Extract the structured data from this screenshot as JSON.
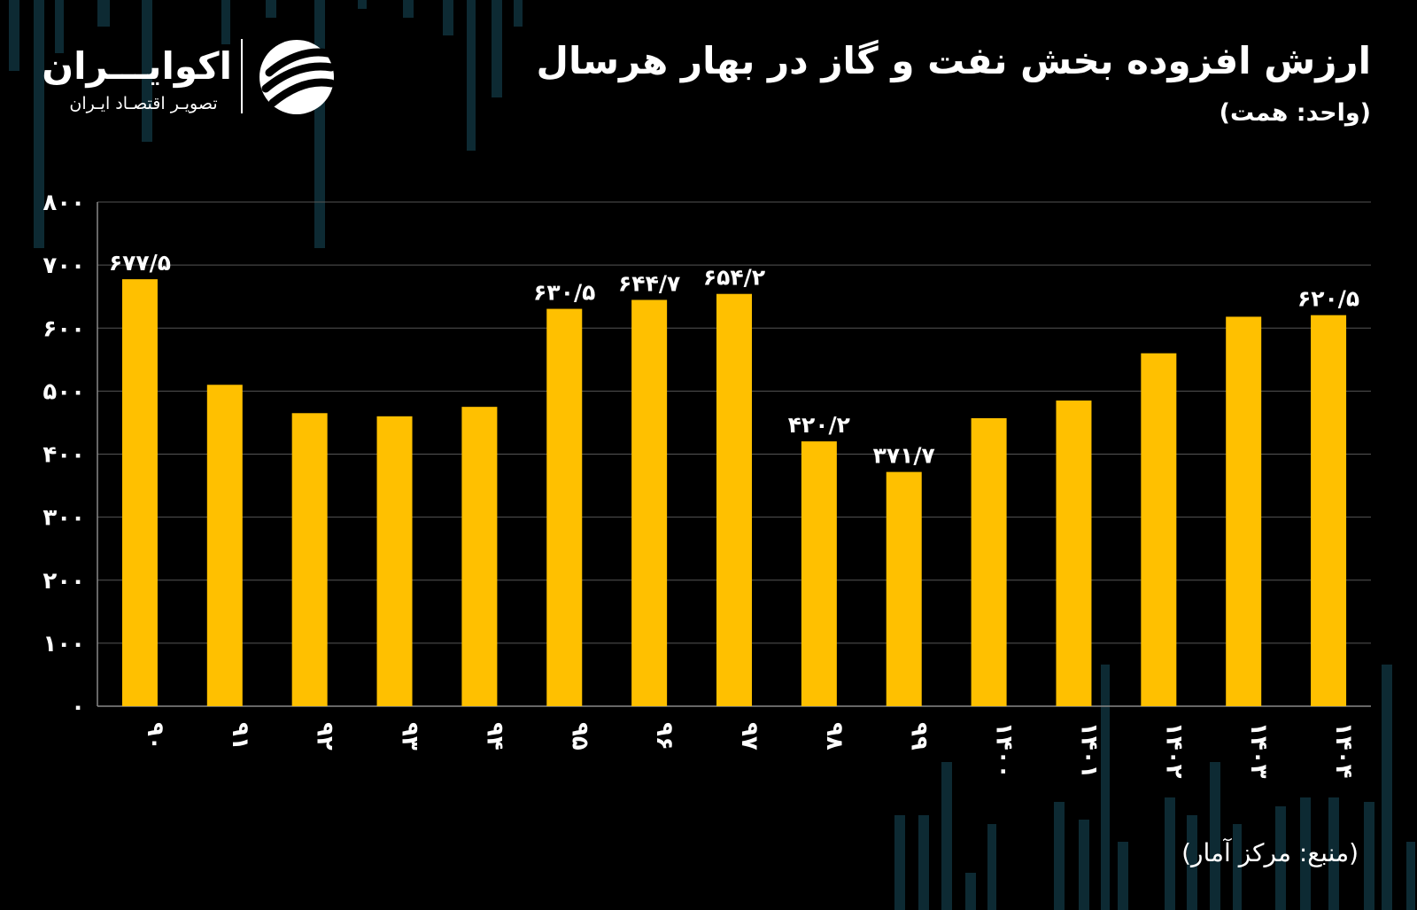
{
  "header": {
    "title": "ارزش افزوده بخش نفت و گاز در بهار هرسال",
    "unit": "(واحد: همت)"
  },
  "logo": {
    "name": "اکوایـــران",
    "tagline": "تصویـر اقتصـاد ایـران",
    "icon": "ecoiran-logo-icon"
  },
  "footer": {
    "source": "(منبع: مرکز آمار)"
  },
  "colors": {
    "background": "#000000",
    "bar": "#FFC000",
    "grid": "#555555",
    "text": "#FFFFFF",
    "deco": "#0d2a33"
  },
  "chart_data": {
    "type": "bar",
    "title": "ارزش افزوده بخش نفت و گاز در بهار هرسال",
    "categories": [
      "۹۰",
      "۹۱",
      "۹۲",
      "۹۳",
      "۹۴",
      "۹۵",
      "۹۶",
      "۹۷",
      "۹۸",
      "۹۹",
      "۱۴۰۰",
      "۱۴۰۱",
      "۱۴۰۲",
      "۱۴۰۳",
      "۱۴۰۴"
    ],
    "values": [
      677.5,
      510,
      465,
      460,
      475,
      630.5,
      644.7,
      654.2,
      420.2,
      371.7,
      457,
      485,
      560,
      618,
      620.5
    ],
    "data_labels": [
      "۶۷۷/۵",
      "",
      "",
      "",
      "",
      "۶۳۰/۵",
      "۶۴۴/۷",
      "۶۵۴/۲",
      "۴۲۰/۲",
      "۳۷۱/۷",
      "",
      "",
      "",
      "",
      "۶۲۰/۵"
    ],
    "y_ticks": [
      0,
      100,
      200,
      300,
      400,
      500,
      600,
      700,
      800
    ],
    "y_tick_labels": [
      "۰",
      "۱۰۰",
      "۲۰۰",
      "۳۰۰",
      "۴۰۰",
      "۵۰۰",
      "۶۰۰",
      "۷۰۰",
      "۸۰۰"
    ],
    "ylim": [
      0,
      800
    ],
    "grid": true,
    "legend": "none",
    "x_label_orientation": "rotated"
  }
}
